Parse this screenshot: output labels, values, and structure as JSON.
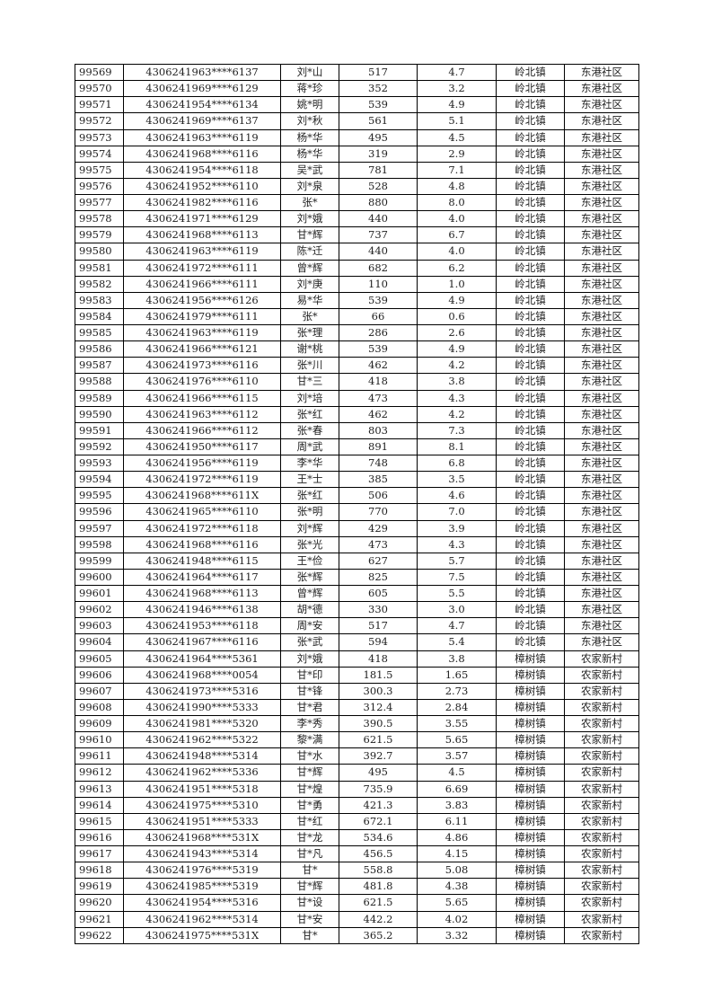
{
  "rows": [
    [
      "99569",
      "4306241963****6137",
      "刘*山",
      "517",
      "4.7",
      "岭北镇",
      "东港社区"
    ],
    [
      "99570",
      "4306241969****6129",
      "蒋*珍",
      "352",
      "3.2",
      "岭北镇",
      "东港社区"
    ],
    [
      "99571",
      "4306241954****6134",
      "姚*明",
      "539",
      "4.9",
      "岭北镇",
      "东港社区"
    ],
    [
      "99572",
      "4306241969****6137",
      "刘*秋",
      "561",
      "5.1",
      "岭北镇",
      "东港社区"
    ],
    [
      "99573",
      "4306241963****6119",
      "杨*华",
      "495",
      "4.5",
      "岭北镇",
      "东港社区"
    ],
    [
      "99574",
      "4306241968****6116",
      "杨*华",
      "319",
      "2.9",
      "岭北镇",
      "东港社区"
    ],
    [
      "99575",
      "4306241954****6118",
      "吴*武",
      "781",
      "7.1",
      "岭北镇",
      "东港社区"
    ],
    [
      "99576",
      "4306241952****6110",
      "刘*泉",
      "528",
      "4.8",
      "岭北镇",
      "东港社区"
    ],
    [
      "99577",
      "4306241982****6116",
      "张*",
      "880",
      "8.0",
      "岭北镇",
      "东港社区"
    ],
    [
      "99578",
      "4306241971****6129",
      "刘*娥",
      "440",
      "4.0",
      "岭北镇",
      "东港社区"
    ],
    [
      "99579",
      "4306241968****6113",
      "甘*辉",
      "737",
      "6.7",
      "岭北镇",
      "东港社区"
    ],
    [
      "99580",
      "4306241963****6119",
      "陈*迁",
      "440",
      "4.0",
      "岭北镇",
      "东港社区"
    ],
    [
      "99581",
      "4306241972****6111",
      "曾*辉",
      "682",
      "6.2",
      "岭北镇",
      "东港社区"
    ],
    [
      "99582",
      "4306241966****6111",
      "刘*庚",
      "110",
      "1.0",
      "岭北镇",
      "东港社区"
    ],
    [
      "99583",
      "4306241956****6126",
      "易*华",
      "539",
      "4.9",
      "岭北镇",
      "东港社区"
    ],
    [
      "99584",
      "4306241979****6111",
      "张*",
      "66",
      "0.6",
      "岭北镇",
      "东港社区"
    ],
    [
      "99585",
      "4306241963****6119",
      "张*理",
      "286",
      "2.6",
      "岭北镇",
      "东港社区"
    ],
    [
      "99586",
      "4306241966****6121",
      "谢*桃",
      "539",
      "4.9",
      "岭北镇",
      "东港社区"
    ],
    [
      "99587",
      "4306241973****6116",
      "张*川",
      "462",
      "4.2",
      "岭北镇",
      "东港社区"
    ],
    [
      "99588",
      "4306241976****6110",
      "甘*三",
      "418",
      "3.8",
      "岭北镇",
      "东港社区"
    ],
    [
      "99589",
      "4306241966****6115",
      "刘*培",
      "473",
      "4.3",
      "岭北镇",
      "东港社区"
    ],
    [
      "99590",
      "4306241963****6112",
      "张*红",
      "462",
      "4.2",
      "岭北镇",
      "东港社区"
    ],
    [
      "99591",
      "4306241966****6112",
      "张*春",
      "803",
      "7.3",
      "岭北镇",
      "东港社区"
    ],
    [
      "99592",
      "4306241950****6117",
      "周*武",
      "891",
      "8.1",
      "岭北镇",
      "东港社区"
    ],
    [
      "99593",
      "4306241956****6119",
      "李*华",
      "748",
      "6.8",
      "岭北镇",
      "东港社区"
    ],
    [
      "99594",
      "4306241972****6119",
      "王*士",
      "385",
      "3.5",
      "岭北镇",
      "东港社区"
    ],
    [
      "99595",
      "4306241968****611X",
      "张*红",
      "506",
      "4.6",
      "岭北镇",
      "东港社区"
    ],
    [
      "99596",
      "4306241965****6110",
      "张*明",
      "770",
      "7.0",
      "岭北镇",
      "东港社区"
    ],
    [
      "99597",
      "4306241972****6118",
      "刘*辉",
      "429",
      "3.9",
      "岭北镇",
      "东港社区"
    ],
    [
      "99598",
      "4306241968****6116",
      "张*光",
      "473",
      "4.3",
      "岭北镇",
      "东港社区"
    ],
    [
      "99599",
      "4306241948****6115",
      "王*俭",
      "627",
      "5.7",
      "岭北镇",
      "东港社区"
    ],
    [
      "99600",
      "4306241964****6117",
      "张*辉",
      "825",
      "7.5",
      "岭北镇",
      "东港社区"
    ],
    [
      "99601",
      "4306241968****6113",
      "曾*辉",
      "605",
      "5.5",
      "岭北镇",
      "东港社区"
    ],
    [
      "99602",
      "4306241946****6138",
      "胡*德",
      "330",
      "3.0",
      "岭北镇",
      "东港社区"
    ],
    [
      "99603",
      "4306241953****6118",
      "周*安",
      "517",
      "4.7",
      "岭北镇",
      "东港社区"
    ],
    [
      "99604",
      "4306241967****6116",
      "张*武",
      "594",
      "5.4",
      "岭北镇",
      "东港社区"
    ],
    [
      "99605",
      "4306241964****5361",
      "刘*娥",
      "418",
      "3.8",
      "樟树镇",
      "农家新村"
    ],
    [
      "99606",
      "4306241968****0054",
      "甘*印",
      "181.5",
      "1.65",
      "樟树镇",
      "农家新村"
    ],
    [
      "99607",
      "4306241973****5316",
      "甘*锋",
      "300.3",
      "2.73",
      "樟树镇",
      "农家新村"
    ],
    [
      "99608",
      "4306241990****5333",
      "甘*君",
      "312.4",
      "2.84",
      "樟树镇",
      "农家新村"
    ],
    [
      "99609",
      "4306241981****5320",
      "李*秀",
      "390.5",
      "3.55",
      "樟树镇",
      "农家新村"
    ],
    [
      "99610",
      "4306241962****5322",
      "黎*满",
      "621.5",
      "5.65",
      "樟树镇",
      "农家新村"
    ],
    [
      "99611",
      "4306241948****5314",
      "甘*水",
      "392.7",
      "3.57",
      "樟树镇",
      "农家新村"
    ],
    [
      "99612",
      "4306241962****5336",
      "甘*辉",
      "495",
      "4.5",
      "樟树镇",
      "农家新村"
    ],
    [
      "99613",
      "4306241951****5318",
      "甘*煌",
      "735.9",
      "6.69",
      "樟树镇",
      "农家新村"
    ],
    [
      "99614",
      "4306241975****5310",
      "甘*勇",
      "421.3",
      "3.83",
      "樟树镇",
      "农家新村"
    ],
    [
      "99615",
      "4306241951****5333",
      "甘*红",
      "672.1",
      "6.11",
      "樟树镇",
      "农家新村"
    ],
    [
      "99616",
      "4306241968****531X",
      "甘*龙",
      "534.6",
      "4.86",
      "樟树镇",
      "农家新村"
    ],
    [
      "99617",
      "4306241943****5314",
      "甘*凡",
      "456.5",
      "4.15",
      "樟树镇",
      "农家新村"
    ],
    [
      "99618",
      "4306241976****5319",
      "甘*",
      "558.8",
      "5.08",
      "樟树镇",
      "农家新村"
    ],
    [
      "99619",
      "4306241985****5319",
      "甘*辉",
      "481.8",
      "4.38",
      "樟树镇",
      "农家新村"
    ],
    [
      "99620",
      "4306241954****5316",
      "甘*设",
      "621.5",
      "5.65",
      "樟树镇",
      "农家新村"
    ],
    [
      "99621",
      "4306241962****5314",
      "甘*安",
      "442.2",
      "4.02",
      "樟树镇",
      "农家新村"
    ],
    [
      "99622",
      "4306241975****531X",
      "甘*",
      "365.2",
      "3.32",
      "樟树镇",
      "农家新村"
    ]
  ]
}
